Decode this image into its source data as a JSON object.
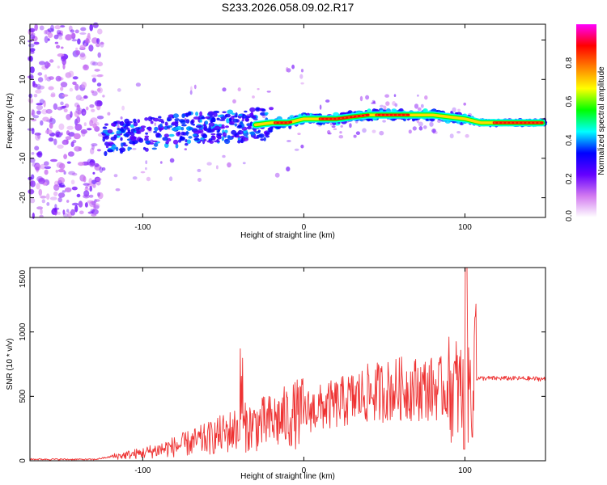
{
  "title": "S233.2026.058.09.02.R17",
  "chart_data": [
    {
      "type": "heatmap",
      "name": "spectrogram",
      "xlabel": "Height of straight line (km)",
      "ylabel": "Frequency (Hz)",
      "xlim": [
        -170,
        150
      ],
      "ylim": [
        -25,
        24
      ],
      "xticks": [
        -100,
        0,
        100
      ],
      "yticks": [
        -20,
        -10,
        0,
        10,
        20
      ],
      "xtick_labels": [
        "-100",
        "0",
        "100"
      ],
      "ytick_labels": [
        "-20",
        "-10",
        "0",
        "10",
        "20"
      ],
      "ridge": {
        "x": [
          -125,
          -100,
          -80,
          -60,
          -40,
          -20,
          -10,
          0,
          10,
          20,
          40,
          60,
          80,
          100,
          110,
          130,
          150
        ],
        "y": [
          -5,
          -4,
          -3,
          -2,
          -2,
          -1,
          -1,
          0,
          0,
          0,
          1,
          1,
          1,
          0,
          -1,
          -1,
          -1
        ]
      },
      "colorbar": {
        "label": "Normalized spectral amplitude",
        "ticks": [
          0.0,
          0.2,
          0.4,
          0.6,
          0.8
        ],
        "tick_labels": [
          "0.0",
          "0.2",
          "0.4",
          "0.6",
          "0.8"
        ],
        "colors": [
          "#ffffff",
          "#d27af0",
          "#6400ff",
          "#0000ff",
          "#00ffff",
          "#00ff00",
          "#ffff00",
          "#ff8000",
          "#ff0000",
          "#ff00ff"
        ]
      }
    },
    {
      "type": "line",
      "name": "snr",
      "xlabel": "Height of straight line (km)",
      "ylabel": "SNR (10 * v/v)",
      "xlim": [
        -170,
        150
      ],
      "ylim": [
        0,
        1500
      ],
      "xticks": [
        -100,
        0,
        100
      ],
      "yticks": [
        0,
        500,
        1000,
        1500
      ],
      "xtick_labels": [
        "-100",
        "0",
        "100"
      ],
      "ytick_labels": [
        "0",
        "500",
        "1000",
        "1500"
      ],
      "color": "#ee3333",
      "envelope": {
        "x": [
          -170,
          -130,
          -120,
          -100,
          -80,
          -60,
          -40,
          -20,
          0,
          20,
          40,
          60,
          80,
          90,
          95,
          100,
          103,
          106,
          107,
          110,
          130,
          150
        ],
        "y": [
          12,
          10,
          30,
          60,
          110,
          170,
          250,
          300,
          380,
          440,
          520,
          560,
          560,
          560,
          560,
          500,
          560,
          560,
          640,
          640,
          640,
          635
        ]
      }
    }
  ]
}
